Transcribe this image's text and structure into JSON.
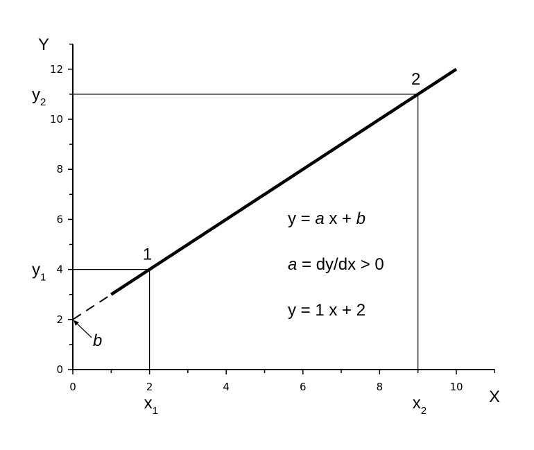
{
  "chart_data": {
    "type": "line",
    "xlabel": "X",
    "ylabel": "Y",
    "xlim": [
      0,
      11
    ],
    "ylim": [
      0,
      13
    ],
    "x_ticks": [
      "0",
      "2",
      "4",
      "6",
      "8",
      "10"
    ],
    "y_ticks": [
      "0",
      "2",
      "4",
      "6",
      "8",
      "10",
      "12"
    ],
    "grid": false,
    "series": [
      {
        "style": "solid",
        "x": [
          1,
          10
        ],
        "y": [
          3,
          12
        ]
      },
      {
        "style": "dashed",
        "x": [
          0,
          1
        ],
        "y": [
          2,
          3
        ]
      }
    ],
    "points": [
      {
        "label": "1",
        "x": 2,
        "y": 4,
        "x_label": "x",
        "x_sub": "1",
        "y_label": "y",
        "y_sub": "1"
      },
      {
        "label": "2",
        "x": 9,
        "y": 11,
        "x_label": "x",
        "x_sub": "2",
        "y_label": "y",
        "y_sub": "2"
      }
    ],
    "intercept": {
      "label": "b",
      "x": 0,
      "y": 2
    },
    "annotations": {
      "eq1": {
        "a": "y = ",
        "b": "a",
        "c": " x + ",
        "d": "b"
      },
      "eq2": {
        "a": "a",
        "b": " = dy/dx > 0"
      },
      "eq3": "y = 1 x + 2"
    }
  }
}
